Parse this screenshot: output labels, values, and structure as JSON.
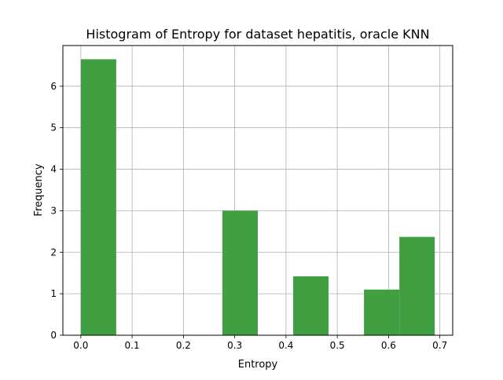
{
  "chart_data": {
    "type": "bar",
    "title": "Histogram of Entropy for dataset hepatitis, oracle KNN",
    "xlabel": "Entropy",
    "ylabel": "Frequency",
    "xlim": [
      -0.035,
      0.725
    ],
    "ylim": [
      0,
      6.98
    ],
    "xticks": [
      0.0,
      0.1,
      0.2,
      0.3,
      0.4,
      0.5,
      0.6,
      0.7
    ],
    "xtick_labels": [
      "0.0",
      "0.1",
      "0.2",
      "0.3",
      "0.4",
      "0.5",
      "0.6",
      "0.7"
    ],
    "yticks": [
      0,
      1,
      2,
      3,
      4,
      5,
      6
    ],
    "ytick_labels": [
      "0",
      "1",
      "2",
      "3",
      "4",
      "5",
      "6"
    ],
    "grid": true,
    "bar_color": "#409f40",
    "bins": [
      {
        "x0": 0.0,
        "x1": 0.069,
        "value": 6.65
      },
      {
        "x0": 0.069,
        "x1": 0.138,
        "value": 0
      },
      {
        "x0": 0.138,
        "x1": 0.207,
        "value": 0
      },
      {
        "x0": 0.207,
        "x1": 0.276,
        "value": 0
      },
      {
        "x0": 0.276,
        "x1": 0.345,
        "value": 3.0
      },
      {
        "x0": 0.345,
        "x1": 0.414,
        "value": 0
      },
      {
        "x0": 0.414,
        "x1": 0.483,
        "value": 1.42
      },
      {
        "x0": 0.483,
        "x1": 0.552,
        "value": 0
      },
      {
        "x0": 0.552,
        "x1": 0.621,
        "value": 1.1
      },
      {
        "x0": 0.621,
        "x1": 0.69,
        "value": 2.37
      }
    ]
  }
}
